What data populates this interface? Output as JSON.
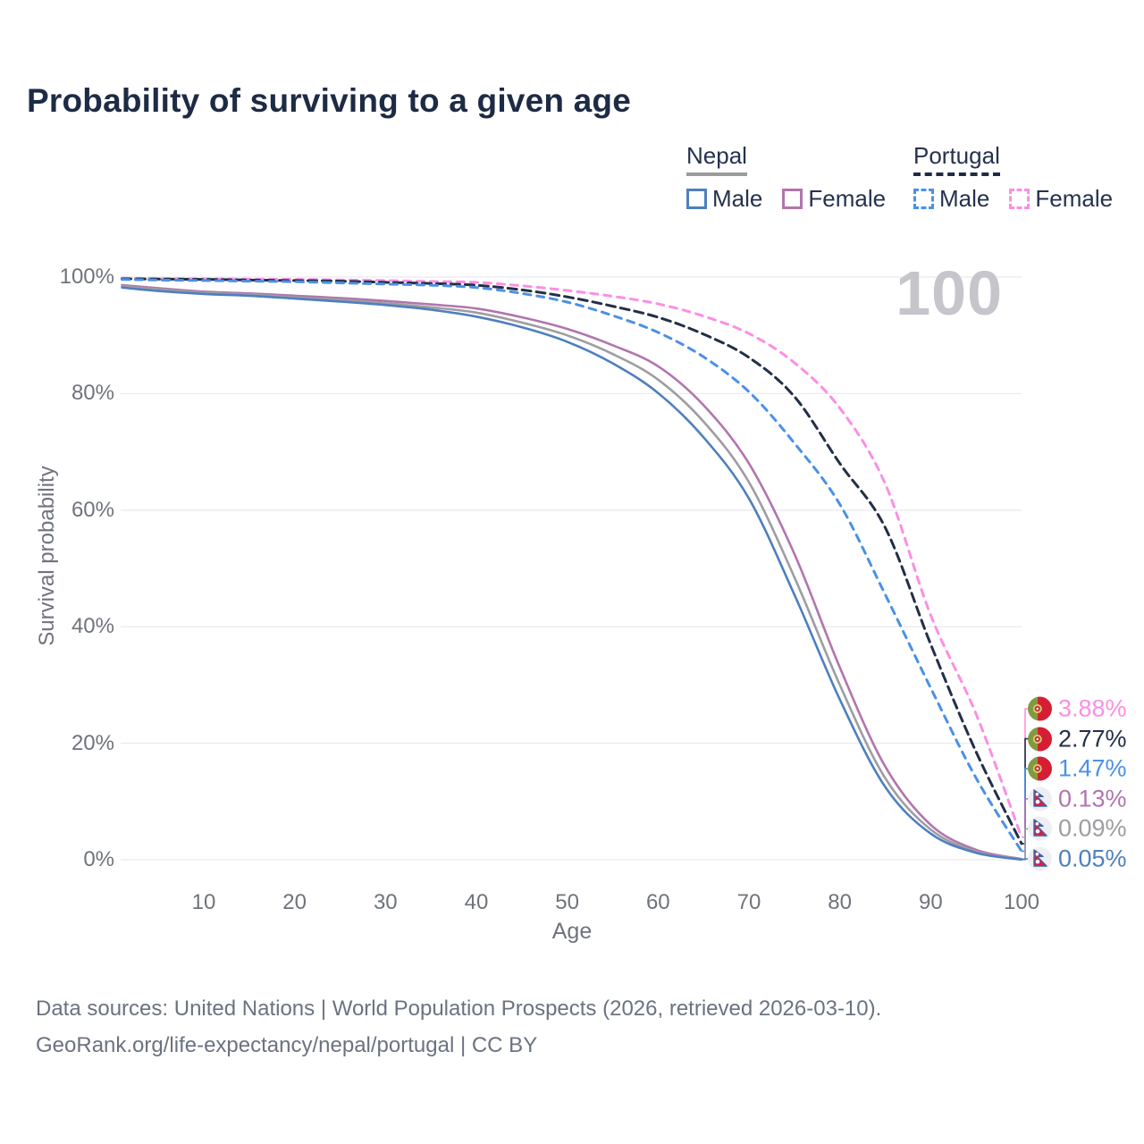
{
  "title": "Probability of surviving to a given age",
  "watermark": "100",
  "legend": {
    "groups": [
      {
        "country": "Nepal",
        "line_style": "solid",
        "underline_color": "#9b9b9b",
        "items": [
          {
            "label": "Male",
            "color": "#4e7fbe"
          },
          {
            "label": "Female",
            "color": "#b175ae"
          }
        ]
      },
      {
        "country": "Portugal",
        "line_style": "dashed",
        "underline_color": "#1d2b45",
        "items": [
          {
            "label": "Male",
            "color": "#4a90e8"
          },
          {
            "label": "Female",
            "color": "#fb8fe3"
          }
        ]
      }
    ]
  },
  "chart_data": {
    "type": "line",
    "title": "Probability of surviving to a given age",
    "xlabel": "Age",
    "ylabel": "Survival probability",
    "xlim": [
      0,
      100
    ],
    "ylim": [
      0,
      100
    ],
    "grid": "horizontal",
    "legend_position": "top-right",
    "xticks": [
      10,
      20,
      30,
      40,
      50,
      60,
      70,
      80,
      90,
      100
    ],
    "yticks": [
      {
        "value": 0,
        "label": "0%"
      },
      {
        "value": 20,
        "label": "20%"
      },
      {
        "value": 40,
        "label": "40%"
      },
      {
        "value": 60,
        "label": "60%"
      },
      {
        "value": 80,
        "label": "80%"
      },
      {
        "value": 100,
        "label": "100%"
      }
    ],
    "highlighted_age": "100",
    "x": [
      1,
      5,
      10,
      15,
      20,
      25,
      30,
      35,
      40,
      45,
      50,
      55,
      60,
      65,
      70,
      75,
      80,
      85,
      90,
      95,
      100
    ],
    "series": [
      {
        "name": "Portugal Female",
        "country": "portugal",
        "sex": "female",
        "color": "#fb8fe3",
        "dash": "8 7",
        "width": 3,
        "values": [
          99.8,
          99.75,
          99.7,
          99.65,
          99.6,
          99.5,
          99.4,
          99.25,
          99.1,
          98.5,
          97.7,
          96.7,
          95.4,
          93.3,
          90.3,
          85.3,
          77.5,
          64.5,
          42,
          25,
          3.88
        ],
        "end_label": {
          "text": "3.88%",
          "color": "#fb8fe3",
          "flag": "portugal"
        }
      },
      {
        "name": "Portugal",
        "country": "portugal",
        "sex": "both",
        "color": "#222f47",
        "dash": "10 6",
        "width": 3,
        "values": [
          99.7,
          99.65,
          99.6,
          99.5,
          99.4,
          99.3,
          99.1,
          98.9,
          98.6,
          97.8,
          96.6,
          95.0,
          93.1,
          90.2,
          86.2,
          79.5,
          68,
          57,
          37,
          18.5,
          2.77
        ],
        "end_label": {
          "text": "2.77%",
          "color": "#222f47",
          "flag": "portugal"
        }
      },
      {
        "name": "Portugal Male",
        "country": "portugal",
        "sex": "male",
        "color": "#4a90e8",
        "dash": "8 7",
        "width": 3,
        "values": [
          99.6,
          99.5,
          99.4,
          99.3,
          99.2,
          99.0,
          98.8,
          98.6,
          98.2,
          97.2,
          95.7,
          93.4,
          90.5,
          86.3,
          80.3,
          71.5,
          61,
          45.5,
          29.5,
          14,
          1.47
        ],
        "end_label": {
          "text": "1.47%",
          "color": "#4a90e8",
          "flag": "portugal"
        }
      },
      {
        "name": "Nepal Female",
        "country": "nepal",
        "sex": "female",
        "color": "#b175ae",
        "dash": null,
        "width": 2.6,
        "values": [
          98.6,
          98.1,
          97.5,
          97.2,
          96.8,
          96.4,
          95.9,
          95.3,
          94.6,
          93.1,
          91.1,
          88.3,
          84.7,
          78,
          68,
          52.5,
          33,
          16,
          6,
          1.7,
          0.13
        ],
        "end_label": {
          "text": "0.13%",
          "color": "#b175ae",
          "flag": "nepal"
        }
      },
      {
        "name": "Nepal",
        "country": "nepal",
        "sex": "both",
        "color": "#9d9da2",
        "dash": null,
        "width": 2.6,
        "values": [
          98.4,
          97.9,
          97.3,
          97.0,
          96.5,
          96.1,
          95.5,
          94.8,
          93.9,
          92.2,
          90.0,
          86.8,
          82.4,
          75.2,
          64.8,
          48.5,
          30,
          14,
          5.2,
          1.4,
          0.09
        ],
        "end_label": {
          "text": "0.09%",
          "color": "#9d9da2",
          "flag": "nepal"
        }
      },
      {
        "name": "Nepal Male",
        "country": "nepal",
        "sex": "male",
        "color": "#4e7fbe",
        "dash": null,
        "width": 2.6,
        "values": [
          98.2,
          97.6,
          97.1,
          96.8,
          96.3,
          95.8,
          95.2,
          94.4,
          93.2,
          91.4,
          88.9,
          85.2,
          80.1,
          72.5,
          62,
          45.5,
          27.5,
          12.5,
          4.5,
          1.2,
          0.05
        ],
        "end_label": {
          "text": "0.05%",
          "color": "#4e7fbe",
          "flag": "nepal"
        }
      }
    ]
  },
  "footer": {
    "line1": "Data sources: United Nations | World Population Prospects (2026, retrieved 2026-03-10).",
    "line2": "GeoRank.org/life-expectancy/nepal/portugal | CC BY"
  }
}
